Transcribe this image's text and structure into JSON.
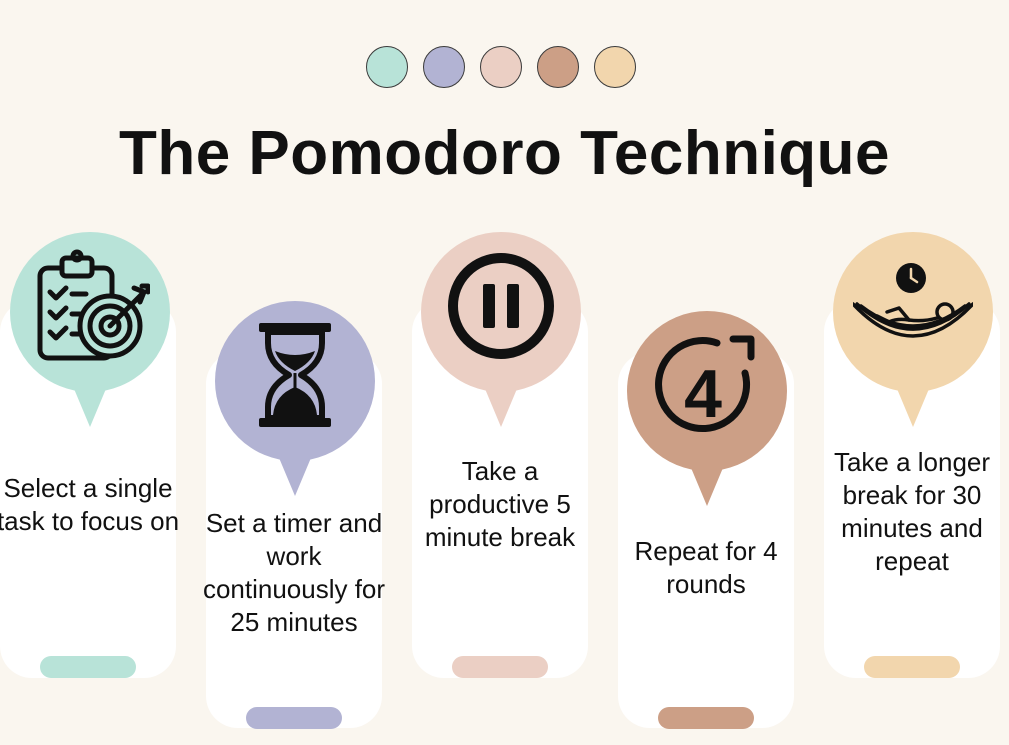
{
  "title": "The Pomodoro Technique",
  "palette": [
    "#b8e3d8",
    "#b2b3d3",
    "#ebcfc4",
    "#cc9f86",
    "#f2d6ad"
  ],
  "steps": [
    {
      "text": "Select a single task to focus on",
      "icon": "clipboard-target-icon",
      "color": "#b8e3d8"
    },
    {
      "text": "Set a timer and work continuously for 25 minutes",
      "icon": "hourglass-icon",
      "color": "#b2b3d3"
    },
    {
      "text": "Take a productive 5 minute break",
      "icon": "pause-icon",
      "color": "#ebcfc4"
    },
    {
      "text": "Repeat for 4 rounds",
      "icon": "repeat-four-icon",
      "color": "#cc9f86"
    },
    {
      "text": "Take a longer break for 30 minutes and repeat",
      "icon": "hammock-rest-icon",
      "color": "#f2d6ad"
    }
  ]
}
